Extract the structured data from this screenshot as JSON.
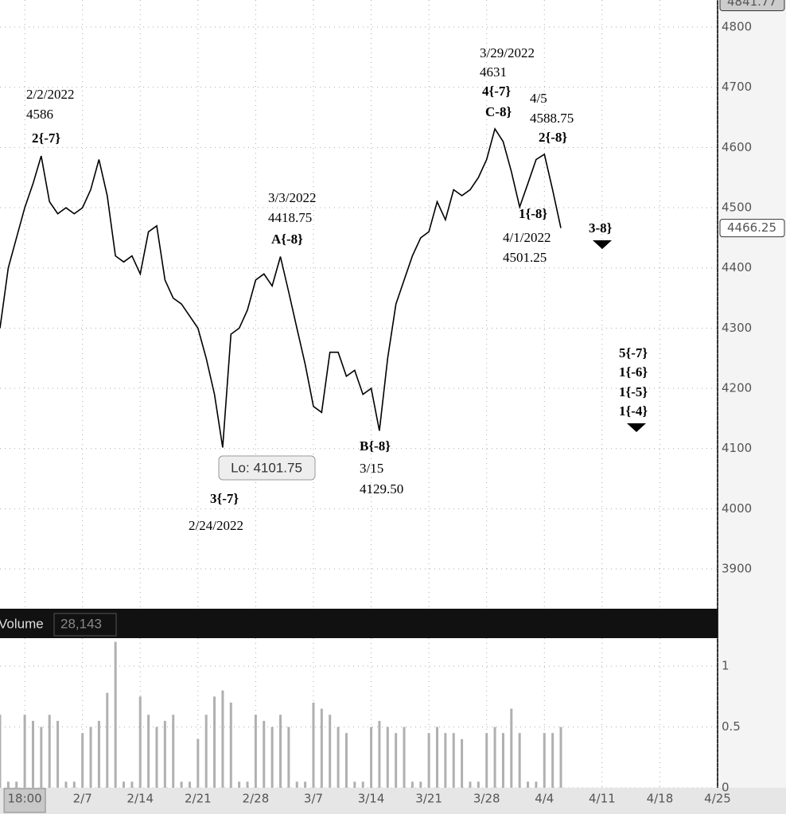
{
  "chart_data": [
    {
      "type": "line",
      "x": [
        "1/28",
        "1/29",
        "1/30",
        "1/31",
        "2/1",
        "2/2",
        "2/3",
        "2/4",
        "2/5",
        "2/6",
        "2/7",
        "2/8",
        "2/9",
        "2/10",
        "2/11",
        "2/12",
        "2/13",
        "2/14",
        "2/15",
        "2/16",
        "2/17",
        "2/18",
        "2/19",
        "2/20",
        "2/21",
        "2/22",
        "2/23",
        "2/24",
        "2/25",
        "2/26",
        "2/27",
        "2/28",
        "3/1",
        "3/2",
        "3/3",
        "3/4",
        "3/5",
        "3/6",
        "3/7",
        "3/8",
        "3/9",
        "3/10",
        "3/11",
        "3/12",
        "3/13",
        "3/14",
        "3/15",
        "3/16",
        "3/17",
        "3/18",
        "3/19",
        "3/20",
        "3/21",
        "3/22",
        "3/23",
        "3/24",
        "3/25",
        "3/26",
        "3/27",
        "3/28",
        "3/29",
        "3/30",
        "3/31",
        "4/1",
        "4/2",
        "4/3",
        "4/4",
        "4/5",
        "4/6"
      ],
      "values": [
        4300,
        4400,
        4450,
        4500,
        4540,
        4586,
        4510,
        4490,
        4500,
        4490,
        4500,
        4530,
        4580,
        4520,
        4420,
        4410,
        4420,
        4390,
        4460,
        4470,
        4380,
        4350,
        4340,
        4320,
        4300,
        4250,
        4190,
        4101.75,
        4290,
        4300,
        4330,
        4380,
        4390,
        4370,
        4418.75,
        4360,
        4300,
        4240,
        4170,
        4160,
        4260,
        4260,
        4220,
        4230,
        4190,
        4200,
        4129.5,
        4250,
        4340,
        4380,
        4420,
        4450,
        4460,
        4510,
        4480,
        4530,
        4520,
        4530,
        4550,
        4580,
        4631,
        4610,
        4560,
        4501.25,
        4540,
        4580,
        4588.75,
        4530,
        4466.25
      ],
      "color": "#000000",
      "xlim": [
        "1/28",
        "4/25"
      ],
      "xticks": [
        {
          "value": "1/31",
          "label": "18:00"
        },
        "2/7",
        "2/14",
        "2/21",
        "2/28",
        "3/7",
        "3/14",
        "3/21",
        "3/28",
        "4/4",
        "4/11",
        "4/18",
        "4/25"
      ],
      "ylim": [
        3834,
        4845
      ],
      "yticks": [
        3900,
        4000,
        4100,
        4200,
        4300,
        4400,
        4500,
        4600,
        4700,
        4800
      ],
      "grid": true,
      "price_markers": [
        4841.77,
        4466.25
      ],
      "low_label": "Lo: 4101.75",
      "annotations": [
        {
          "lines": [
            "2/2/2022",
            "4586",
            "2{-7}"
          ]
        },
        {
          "lines": [
            "3/3/2022",
            "4418.75",
            "A{-8}"
          ]
        },
        {
          "lines": [
            "3{-7}",
            "2/24/2022"
          ]
        },
        {
          "lines": [
            "B{-8}",
            "3/15",
            "4129.50"
          ]
        },
        {
          "lines": [
            "3/29/2022",
            "4631",
            "4{-7}",
            "C-8}"
          ]
        },
        {
          "lines": [
            "4/5",
            "4588.75",
            "2{-8}"
          ]
        },
        {
          "lines": [
            "1{-8}",
            "4/1/2022",
            "4501.25"
          ]
        },
        {
          "lines": [
            "3-8}"
          ]
        },
        {
          "lines": [
            "5{-7}",
            "1{-6}",
            "1{-5}",
            "1{-4}"
          ]
        }
      ]
    },
    {
      "type": "bar",
      "title": "Volume",
      "value_label": "28,143",
      "x": [
        "1/28",
        "1/29",
        "1/30",
        "1/31",
        "2/1",
        "2/2",
        "2/3",
        "2/4",
        "2/5",
        "2/6",
        "2/7",
        "2/8",
        "2/9",
        "2/10",
        "2/11",
        "2/12",
        "2/13",
        "2/14",
        "2/15",
        "2/16",
        "2/17",
        "2/18",
        "2/19",
        "2/20",
        "2/21",
        "2/22",
        "2/23",
        "2/24",
        "2/25",
        "2/26",
        "2/27",
        "2/28",
        "3/1",
        "3/2",
        "3/3",
        "3/4",
        "3/5",
        "3/6",
        "3/7",
        "3/8",
        "3/9",
        "3/10",
        "3/11",
        "3/12",
        "3/13",
        "3/14",
        "3/15",
        "3/16",
        "3/17",
        "3/18",
        "3/19",
        "3/20",
        "3/21",
        "3/22",
        "3/23",
        "3/24",
        "3/25",
        "3/26",
        "3/27",
        "3/28",
        "3/29",
        "3/30",
        "3/31",
        "4/1",
        "4/2",
        "4/3",
        "4/4",
        "4/5",
        "4/6"
      ],
      "values": [
        0.6,
        0.05,
        0.05,
        0.6,
        0.55,
        0.5,
        0.6,
        0.55,
        0.05,
        0.05,
        0.45,
        0.5,
        0.55,
        0.78,
        1.2,
        0.05,
        0.05,
        0.75,
        0.6,
        0.5,
        0.55,
        0.6,
        0.05,
        0.05,
        0.4,
        0.6,
        0.75,
        0.8,
        0.7,
        0.05,
        0.05,
        0.6,
        0.55,
        0.5,
        0.6,
        0.5,
        0.05,
        0.05,
        0.7,
        0.65,
        0.6,
        0.5,
        0.45,
        0.05,
        0.05,
        0.5,
        0.55,
        0.5,
        0.45,
        0.5,
        0.05,
        0.05,
        0.45,
        0.5,
        0.45,
        0.45,
        0.4,
        0.05,
        0.05,
        0.45,
        0.5,
        0.45,
        0.65,
        0.45,
        0.05,
        0.05,
        0.45,
        0.45,
        0.5
      ],
      "color": "#b0b0b0",
      "ylim": [
        0,
        1.23
      ],
      "yticks": [
        0,
        0.5,
        1
      ],
      "grid": true
    }
  ]
}
